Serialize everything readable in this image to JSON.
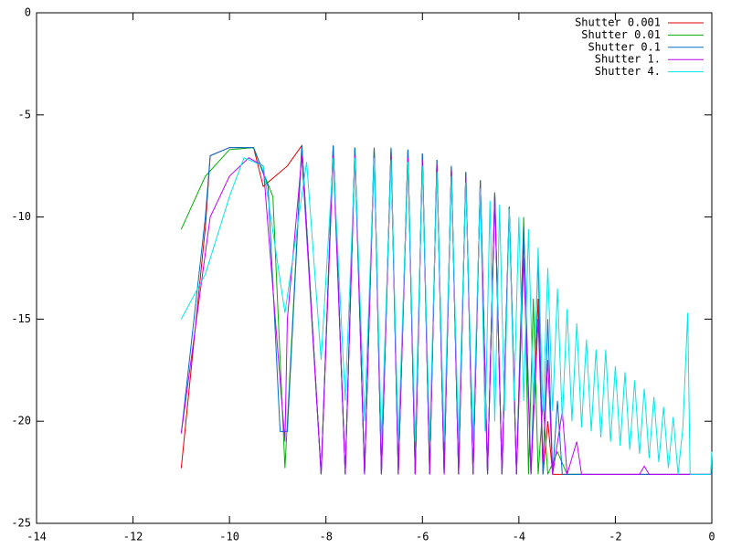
{
  "chart_data": {
    "type": "line",
    "xlim": [
      -14,
      0
    ],
    "xticks": [
      -14,
      -12,
      -10,
      -8,
      -6,
      -4,
      -2,
      0
    ],
    "ylim": [
      -25,
      0
    ],
    "yticks": [
      -25,
      -20,
      -15,
      -10,
      -5,
      0
    ],
    "legend": "top-right",
    "series": [
      {
        "name": "Shutter 0.001",
        "color": "#e00000",
        "x": [
          -11,
          -10.5,
          -10.4,
          -10,
          -9.5,
          -9.3,
          -8.8,
          -8.5,
          -8.1,
          -7.85,
          -7.6,
          -7.4,
          -7.2,
          -7.0,
          -6.85,
          -6.65,
          -6.5,
          -6.3,
          -6.15,
          -6.0,
          -5.85,
          -5.7,
          -5.55,
          -5.4,
          -5.25,
          -5.1,
          -4.95,
          -4.8,
          -4.65,
          -4.5,
          -4.35,
          -4.2,
          -4.05,
          -3.9,
          -3.75,
          -3.6,
          -3.5,
          -3.4,
          -3.3,
          -2.5,
          0
        ],
        "values": [
          -22.3,
          -10.5,
          -7,
          -6.6,
          -6.6,
          -8.5,
          -7.5,
          -6.5,
          -22.6,
          -6.5,
          -22.6,
          -6.6,
          -22.6,
          -6.6,
          -22.6,
          -6.6,
          -22.6,
          -6.7,
          -22.6,
          -6.9,
          -22.6,
          -7.2,
          -22.6,
          -7.5,
          -22.6,
          -7.8,
          -22.6,
          -8.2,
          -22.6,
          -8.8,
          -22.6,
          -9.5,
          -22.6,
          -11,
          -22.6,
          -14,
          -22.6,
          -20,
          -22.6,
          -22.6,
          -22.6
        ]
      },
      {
        "name": "Shutter 0.01",
        "color": "#00b000",
        "x": [
          -11,
          -10.5,
          -10,
          -9.5,
          -9.1,
          -8.85,
          -8.5,
          -8.1,
          -7.85,
          -7.6,
          -7.4,
          -7.2,
          -7.0,
          -6.85,
          -6.65,
          -6.5,
          -6.3,
          -6.15,
          -6.0,
          -5.85,
          -5.7,
          -5.55,
          -5.4,
          -5.25,
          -5.1,
          -4.95,
          -4.8,
          -4.65,
          -4.5,
          -4.35,
          -4.2,
          -4.05,
          -3.9,
          -3.8,
          -3.7,
          -3.6,
          -3.5,
          -3.4,
          -3.2,
          -3.0,
          -2.5
        ],
        "values": [
          -10.6,
          -8,
          -6.7,
          -6.6,
          -9,
          -22.3,
          -6.5,
          -22.6,
          -6.5,
          -22.6,
          -6.6,
          -22.6,
          -6.6,
          -22.6,
          -6.6,
          -22.6,
          -6.7,
          -22.6,
          -6.9,
          -22.6,
          -7.2,
          -22.6,
          -7.5,
          -22.6,
          -7.8,
          -22.6,
          -8.2,
          -22.6,
          -8.8,
          -22.6,
          -9.5,
          -22.6,
          -10,
          -22.6,
          -14,
          -22.6,
          -19,
          -22.6,
          -21.5,
          -22.6,
          -22.6
        ]
      },
      {
        "name": "Shutter 0.1",
        "color": "#0070d0",
        "x": [
          -11,
          -10.5,
          -10.4,
          -10,
          -9.5,
          -9.2,
          -8.95,
          -8.8,
          -8.5,
          -8.1,
          -7.85,
          -7.6,
          -7.4,
          -7.2,
          -7.0,
          -6.85,
          -6.65,
          -6.5,
          -6.3,
          -6.15,
          -6.0,
          -5.85,
          -5.7,
          -5.55,
          -5.4,
          -5.25,
          -5.1,
          -4.95,
          -4.8,
          -4.65,
          -4.5,
          -4.35,
          -4.2,
          -4.05,
          -3.9,
          -3.75,
          -3.6,
          -3.5,
          -3.4,
          -3.3,
          -3.2,
          -3.1,
          -2.5,
          -0.02,
          0
        ],
        "values": [
          -20.6,
          -10,
          -7,
          -6.6,
          -6.6,
          -8.5,
          -20.5,
          -20.5,
          -6.5,
          -22.6,
          -6.5,
          -22.6,
          -6.6,
          -22.6,
          -6.6,
          -22.6,
          -6.6,
          -22.6,
          -6.7,
          -22.6,
          -6.9,
          -22.6,
          -7.2,
          -22.6,
          -7.5,
          -22.6,
          -7.8,
          -22.6,
          -8.2,
          -22.6,
          -8.8,
          -22.6,
          -9.5,
          -22.6,
          -10.5,
          -22.6,
          -12,
          -22.6,
          -15,
          -22.6,
          -19,
          -22.6,
          -22.6,
          -22.6,
          -21.5
        ]
      },
      {
        "name": "Shutter 1.",
        "color": "#c000ff",
        "x": [
          -11,
          -10.4,
          -10,
          -9.6,
          -9.3,
          -8.85,
          -8.8,
          -8.5,
          -8.1,
          -7.85,
          -7.6,
          -7.4,
          -7.2,
          -7.0,
          -6.85,
          -6.65,
          -6.5,
          -6.3,
          -6.15,
          -6.0,
          -5.85,
          -5.7,
          -5.55,
          -5.4,
          -5.25,
          -5.1,
          -4.95,
          -4.8,
          -4.65,
          -4.5,
          -4.35,
          -4.2,
          -4.05,
          -3.9,
          -3.75,
          -3.6,
          -3.5,
          -3.4,
          -3.3,
          -3.1,
          -3.0,
          -2.8,
          -2.7,
          -2.5,
          -1.5,
          -1.4,
          -1.3,
          0
        ],
        "values": [
          -20.6,
          -10,
          -8,
          -7.1,
          -7.5,
          -21,
          -15,
          -7,
          -22.6,
          -7,
          -22.6,
          -7,
          -22.6,
          -7,
          -22.6,
          -7,
          -22.6,
          -7.1,
          -22.6,
          -7.2,
          -22.6,
          -7.4,
          -22.6,
          -7.7,
          -22.6,
          -8,
          -22.6,
          -8.4,
          -22.6,
          -9,
          -22.6,
          -9.7,
          -22.6,
          -12,
          -22.6,
          -15,
          -22,
          -17,
          -22.6,
          -19.5,
          -22.6,
          -21,
          -22.6,
          -22.6,
          -22.6,
          -22.2,
          -22.6,
          -22.6
        ]
      },
      {
        "name": "Shutter 4.",
        "color": "#00e8e8",
        "x": [
          -11,
          -10.5,
          -10,
          -9.7,
          -9.3,
          -8.85,
          -8.4,
          -8.1,
          -7.85,
          -7.6,
          -7.4,
          -7.2,
          -7.0,
          -6.85,
          -6.65,
          -6.5,
          -6.3,
          -6.15,
          -6.0,
          -5.85,
          -5.7,
          -5.55,
          -5.4,
          -5.25,
          -5.1,
          -4.95,
          -4.8,
          -4.7,
          -4.6,
          -4.5,
          -4.4,
          -4.3,
          -4.2,
          -4.1,
          -4.0,
          -3.9,
          -3.8,
          -3.7,
          -3.6,
          -3.5,
          -3.4,
          -3.3,
          -3.2,
          -3.1,
          -3.0,
          -2.9,
          -2.8,
          -2.7,
          -2.6,
          -2.5,
          -2.4,
          -2.3,
          -2.2,
          -2.1,
          -2.0,
          -1.9,
          -1.8,
          -1.7,
          -1.6,
          -1.5,
          -1.4,
          -1.3,
          -1.2,
          -1.1,
          -1.0,
          -0.9,
          -0.8,
          -0.7,
          -0.6,
          -0.5,
          -0.45,
          -0.02,
          0
        ],
        "values": [
          -15,
          -12.8,
          -9,
          -7.1,
          -7.5,
          -14.7,
          -7.3,
          -17,
          -7.1,
          -19,
          -7.1,
          -20,
          -7.1,
          -21,
          -7.2,
          -21,
          -7.3,
          -21,
          -7.5,
          -21,
          -7.8,
          -21,
          -8,
          -21,
          -8.3,
          -21,
          -8.6,
          -20.5,
          -9.2,
          -20,
          -9.4,
          -19.5,
          -9.6,
          -19,
          -10,
          -19,
          -10.6,
          -19.2,
          -11.5,
          -19.5,
          -12.5,
          -19.5,
          -13.5,
          -20,
          -14.5,
          -20,
          -15.2,
          -20.3,
          -16,
          -20.5,
          -16.5,
          -20.8,
          -16.5,
          -21,
          -17.3,
          -21.2,
          -17.6,
          -21.4,
          -18,
          -21.6,
          -18.4,
          -21.8,
          -18.8,
          -22,
          -19.3,
          -22.3,
          -19.8,
          -22.6,
          -20.3,
          -14.7,
          -22.6,
          -22.6,
          -21.5
        ]
      }
    ]
  }
}
